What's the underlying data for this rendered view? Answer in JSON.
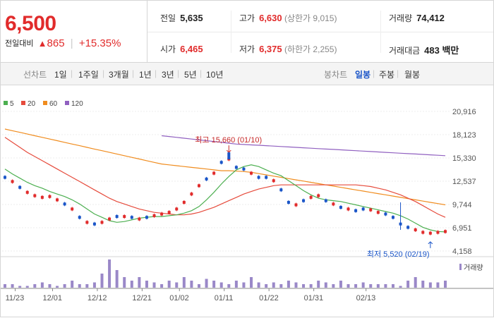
{
  "quote": {
    "price": "6,500",
    "change_label": "전일대비",
    "change_icon": "up-triangle-icon",
    "change_amount": "865",
    "change_rate": "+15.35%"
  },
  "stats": {
    "prev_close": {
      "label": "전일",
      "value": "5,635"
    },
    "high": {
      "label": "고가",
      "value": "6,630",
      "sub": "(상한가 9,015)"
    },
    "volume": {
      "label": "거래량",
      "value": "74,412"
    },
    "open": {
      "label": "시가",
      "value": "6,465"
    },
    "low": {
      "label": "저가",
      "value": "6,375",
      "sub": "(하한가 2,255)"
    },
    "amount": {
      "label": "거래대금",
      "value": "483 백만"
    }
  },
  "toolbar": {
    "line_label": "선차트",
    "periods": [
      "1일",
      "1주일",
      "3개월",
      "1년",
      "3년",
      "5년",
      "10년"
    ],
    "candle_label": "봉차트",
    "candle_periods": [
      "일봉",
      "주봉",
      "월봉"
    ],
    "active_candle": "일봉"
  },
  "colors": {
    "up": "#e12b2b",
    "down": "#1a55c8",
    "ma5": "#4caf50",
    "ma20": "#e64b3c",
    "ma60": "#f08c1e",
    "ma120": "#9060c0",
    "volume": "#9a88c8"
  },
  "chart_data": {
    "type": "candlestick",
    "legend": [
      {
        "name": "5",
        "color": "#4caf50"
      },
      {
        "name": "20",
        "color": "#e64b3c"
      },
      {
        "name": "60",
        "color": "#f08c1e"
      },
      {
        "name": "120",
        "color": "#9060c0"
      }
    ],
    "y_ticks": [
      "20,916",
      "18,123",
      "15,330",
      "12,537",
      "9,744",
      "6,951",
      "4,158"
    ],
    "ylim": [
      4158,
      20916
    ],
    "x_ticks": [
      "11/23",
      "12/01",
      "12/12",
      "12/21",
      "01/02",
      "01/11",
      "01/22",
      "01/31",
      "02/13"
    ],
    "high_annotation": "최고 15,660 (01/10)",
    "low_annotation": "최저 5,520 (02/19)",
    "volume_label": "거래량",
    "closes": [
      13000,
      12500,
      11800,
      11200,
      10800,
      10600,
      10700,
      10300,
      9800,
      9200,
      8200,
      7600,
      7400,
      7600,
      8000,
      8300,
      8300,
      8200,
      8000,
      8200,
      8400,
      8600,
      8800,
      9200,
      10000,
      11000,
      12000,
      12800,
      13500,
      14800,
      15200,
      14200,
      14000,
      13500,
      13000,
      13000,
      12600,
      11500,
      10000,
      9700,
      10200,
      10600,
      10800,
      10200,
      9800,
      9400,
      9200,
      9000,
      9200,
      9100,
      8800,
      8600,
      8200,
      7400,
      7000,
      6700,
      6400,
      6300,
      6400,
      6500
    ],
    "ma5": [
      14000,
      13400,
      12900,
      12400,
      12000,
      11700,
      11300,
      11000,
      10700,
      10300,
      9800,
      9200,
      8600,
      8200,
      7800,
      7600,
      7700,
      7900,
      8100,
      8200,
      8300,
      8300,
      8400,
      8500,
      8700,
      9000,
      9500,
      10300,
      11200,
      12200,
      13100,
      13900,
      14300,
      14500,
      14300,
      13900,
      13500,
      13200,
      12600,
      12000,
      11400,
      10900,
      10500,
      10300,
      10200,
      10100,
      9900,
      9700,
      9500,
      9300,
      9100,
      8900,
      8700,
      8400,
      8000,
      7500,
      7000,
      6700,
      6500,
      6450
    ],
    "ma20": [
      17800,
      17200,
      16600,
      16000,
      15500,
      15000,
      14500,
      14000,
      13500,
      13000,
      12500,
      12000,
      11500,
      11000,
      10500,
      10100,
      9800,
      9500,
      9200,
      9000,
      8800,
      8700,
      8600,
      8500,
      8500,
      8600,
      8800,
      9100,
      9400,
      9800,
      10200,
      10600,
      11000,
      11300,
      11600,
      11800,
      12000,
      12100,
      12100,
      12100,
      12100,
      12100,
      12100,
      12100,
      12100,
      12100,
      12100,
      12100,
      12000,
      11900,
      11700,
      11500,
      11200,
      10900,
      10500,
      10100,
      9600,
      9100,
      8600,
      8200
    ],
    "ma60": [
      18800,
      18600,
      18400,
      18200,
      18000,
      17800,
      17600,
      17400,
      17200,
      17000,
      16800,
      16600,
      16400,
      16200,
      16000,
      15800,
      15600,
      15400,
      15200,
      15000,
      14800,
      14600,
      14500,
      14400,
      14300,
      14200,
      14100,
      14000,
      13900,
      13800,
      13800,
      13750,
      13700,
      13600,
      13450,
      13300,
      13150,
      13000,
      12850,
      12700,
      12550,
      12400,
      12250,
      12100,
      11950,
      11800,
      11650,
      11500,
      11350,
      11200,
      11050,
      10900,
      10750,
      10600,
      10450,
      10300,
      10150,
      10000,
      9850,
      9700
    ],
    "ma120": [
      null,
      null,
      null,
      null,
      null,
      null,
      null,
      null,
      null,
      null,
      null,
      null,
      null,
      null,
      null,
      null,
      null,
      null,
      null,
      null,
      null,
      18000,
      17900,
      17800,
      17700,
      17600,
      17500,
      17400,
      17300,
      17200,
      17100,
      17000,
      16950,
      16900,
      16850,
      16800,
      16750,
      16700,
      16650,
      16600,
      16550,
      16500,
      16450,
      16400,
      16350,
      16300,
      16250,
      16200,
      16150,
      16100,
      16050,
      16000,
      15950,
      15900,
      15850,
      15800,
      15750,
      15700,
      15650,
      15600
    ],
    "volumes": [
      1,
      1,
      0.5,
      0.5,
      1,
      1.5,
      1,
      0.5,
      1,
      2,
      1,
      1,
      1.5,
      4,
      8,
      5,
      3,
      2,
      3,
      2,
      1.5,
      1,
      2,
      1.5,
      3,
      2,
      1,
      2.5,
      2,
      1.5,
      1,
      2,
      1.5,
      3,
      1.5,
      1,
      1.5,
      1,
      2,
      1.5,
      1,
      1,
      2,
      1.5,
      1,
      2,
      1,
      1,
      1.5,
      1,
      1,
      1,
      1,
      0.5,
      2,
      3,
      2,
      1.5,
      1.5,
      2
    ],
    "down_days": [
      0,
      2,
      8,
      10,
      12,
      15,
      17,
      19,
      27,
      29,
      31,
      32,
      34,
      35,
      37,
      38,
      40,
      43,
      45,
      47,
      48,
      51,
      52,
      53,
      54
    ]
  }
}
